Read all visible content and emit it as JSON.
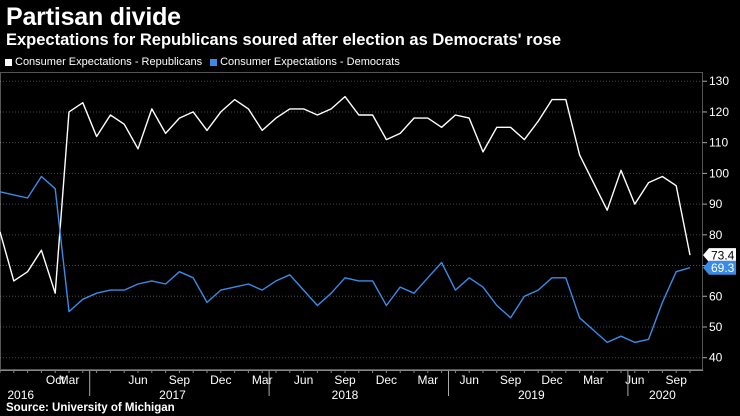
{
  "title": "Partisan divide",
  "subtitle": "Expectations for Republicans soured after election as Democrats' rose",
  "source": "Source: University of Michigan",
  "legend": [
    {
      "label": "Consumer Expectations - Republicans",
      "color": "#ffffff"
    },
    {
      "label": "Consumer Expectations - Democrats",
      "color": "#3a8be6"
    }
  ],
  "end_labels": {
    "republicans": "73.4",
    "democrats": "69.3"
  },
  "chart_data": {
    "type": "line",
    "ylim": [
      36,
      133
    ],
    "y_ticks": [
      40,
      50,
      60,
      70,
      80,
      90,
      100,
      110,
      120,
      130
    ],
    "month_ticks": [
      "Oct",
      "Mar",
      "Jun",
      "Sep",
      "Dec",
      "Mar",
      "Jun",
      "Sep",
      "Dec",
      "Mar",
      "Jun",
      "Sep",
      "Dec",
      "Mar",
      "Jun",
      "Sep"
    ],
    "year_labels": [
      "2016",
      "2017",
      "2018",
      "2019",
      "2020"
    ],
    "series": [
      {
        "name": "Consumer Expectations - Republicans",
        "color": "#ffffff",
        "values": [
          81,
          65,
          68,
          75,
          61,
          120,
          123,
          112,
          119,
          116,
          108,
          121,
          113,
          118,
          120,
          114,
          120,
          124,
          121,
          114,
          118,
          121,
          121,
          119,
          121,
          125,
          119,
          119,
          111,
          113,
          118,
          118,
          115,
          119,
          118,
          107,
          115,
          115,
          111,
          117,
          124,
          124,
          106,
          97,
          88,
          101,
          90,
          97,
          99,
          96,
          73.4
        ]
      },
      {
        "name": "Consumer Expectations - Democrats",
        "color": "#3a8be6",
        "values": [
          94,
          93,
          92,
          99,
          95,
          55,
          59,
          61,
          62,
          62,
          64,
          65,
          64,
          68,
          66,
          58,
          62,
          63,
          64,
          62,
          65,
          67,
          62,
          57,
          61,
          66,
          65,
          65,
          57,
          63,
          61,
          66,
          71,
          62,
          66,
          63,
          57,
          53,
          60,
          62,
          66,
          66,
          53,
          49,
          45,
          47,
          45,
          46,
          58,
          68,
          69.3
        ]
      }
    ]
  }
}
